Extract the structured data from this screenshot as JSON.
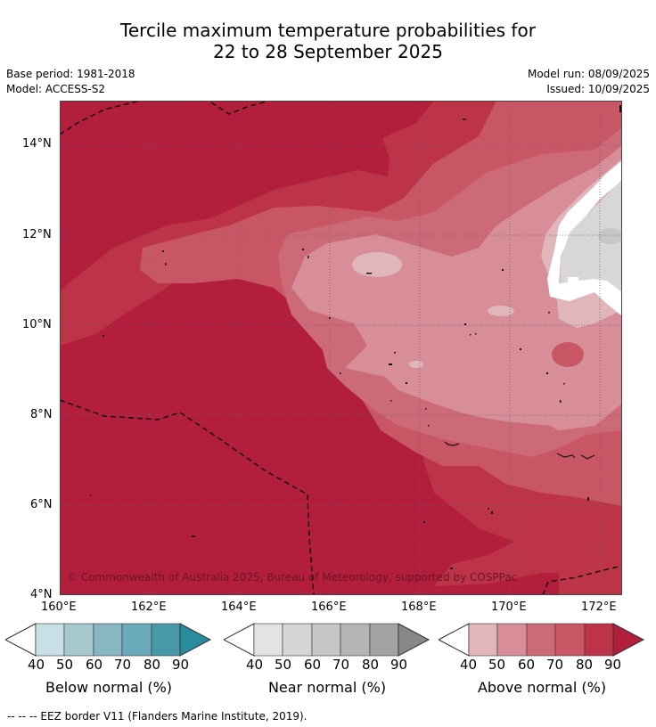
{
  "title": {
    "line1": "Tercile maximum temperature probabilities for",
    "line2": "22 to 28 September 2025"
  },
  "meta": {
    "base_period": "Base period: 1981-2018",
    "model": "Model: ACCESS-S2",
    "model_run": "Model run: 08/09/2025",
    "issued": "Issued: 10/09/2025"
  },
  "map": {
    "copyright": "© Commonwealth of Australia 2025, Bureau of Meteorology, supported by COSPPac",
    "lat_labels": [
      "14°N",
      "12°N",
      "10°N",
      "8°N",
      "6°N",
      "4°N"
    ],
    "lon_labels": [
      "160°E",
      "162°E",
      "164°E",
      "166°E",
      "168°E",
      "170°E",
      "172°E"
    ],
    "colors": {
      "above_90": "#b21e3b",
      "above_80": "#bd3449",
      "above_70": "#c95664",
      "above_60": "#cc6a77",
      "above_50": "#d78e98",
      "above_40": "#e1b6bb",
      "near_50": "#d7d7d7",
      "near_60": "#c7c7c7",
      "white": "#ffffff"
    }
  },
  "colorbars": [
    {
      "label": "Below normal (%)",
      "ticks": [
        "40",
        "50",
        "60",
        "70",
        "80",
        "90"
      ],
      "colors": [
        "#ffffff",
        "#c7e0e6",
        "#a5c9cf",
        "#88b6c2",
        "#6aaaba",
        "#4898aa",
        "#2a8c9f"
      ]
    },
    {
      "label": "Near normal (%)",
      "ticks": [
        "40",
        "50",
        "60",
        "70",
        "80",
        "90"
      ],
      "colors": [
        "#ffffff",
        "#e3e3e3",
        "#d6d6d6",
        "#c6c6c6",
        "#b4b4b4",
        "#a2a2a2",
        "#888888"
      ]
    },
    {
      "label": "Above normal (%)",
      "ticks": [
        "40",
        "50",
        "60",
        "70",
        "80",
        "90"
      ],
      "colors": [
        "#ffffff",
        "#e1b6bb",
        "#d78e98",
        "#cc6a77",
        "#c95664",
        "#bd3449",
        "#b21e3b"
      ]
    }
  ],
  "footnote": "--  --  -- EEZ border V11 (Flanders Marine Institute, 2019)."
}
